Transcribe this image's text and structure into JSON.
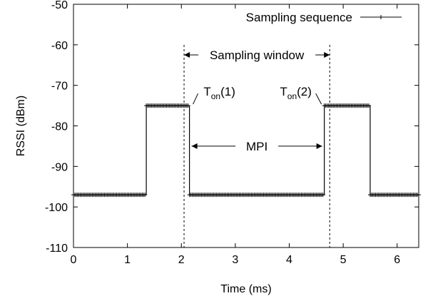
{
  "chart_data": {
    "type": "line",
    "xlabel": "Time (ms)",
    "ylabel": "RSSI (dBm)",
    "xlim": [
      0,
      6.4
    ],
    "ylim": [
      -110,
      -50
    ],
    "x_ticks": [
      0,
      1,
      2,
      3,
      4,
      5,
      6
    ],
    "y_ticks": [
      -110,
      -100,
      -90,
      -80,
      -70,
      -60,
      -50
    ],
    "grid": false,
    "legend": {
      "position": "top-right"
    },
    "series": [
      {
        "name": "Sampling sequence",
        "marker": "plus",
        "sample_interval_ms": 0.025,
        "points": [
          [
            0.0,
            -97
          ],
          [
            1.35,
            -97
          ],
          [
            1.35,
            -75
          ],
          [
            2.15,
            -75
          ],
          [
            2.15,
            -97
          ],
          [
            4.65,
            -97
          ],
          [
            4.65,
            -75
          ],
          [
            5.5,
            -75
          ],
          [
            5.5,
            -97
          ],
          [
            6.4,
            -97
          ]
        ]
      }
    ],
    "vlines": [
      2.05,
      4.75
    ],
    "annotations": {
      "sampling_window": {
        "label": "Sampling window",
        "x_from": 2.05,
        "x_to": 4.75,
        "y": -62.5
      },
      "mpi": {
        "label": "MPI",
        "x_from": 2.15,
        "x_to": 4.65,
        "y": -85
      },
      "ton1": {
        "label": "T",
        "sub": "on",
        "suffix": "(1)",
        "at": [
          2.15,
          -75
        ]
      },
      "ton2": {
        "label": "T",
        "sub": "on",
        "suffix": "(2)",
        "at": [
          4.65,
          -75
        ]
      }
    }
  }
}
